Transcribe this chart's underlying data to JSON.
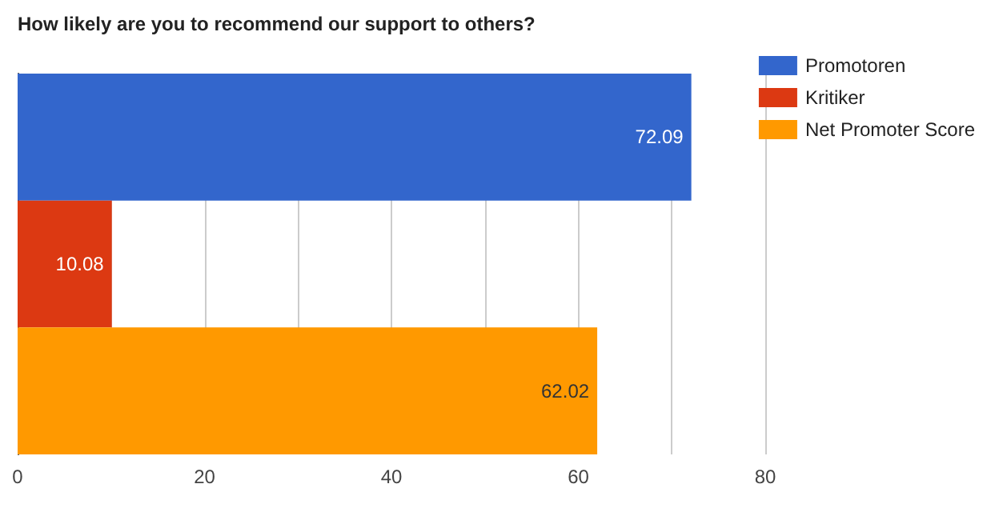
{
  "chart_data": {
    "type": "bar",
    "orientation": "horizontal",
    "title": "How likely are you to recommend our support to others?",
    "categories": [
      null
    ],
    "series": [
      {
        "name": "Promotoren",
        "color": "#3366cc",
        "values": [
          72.09
        ]
      },
      {
        "name": "Kritiker",
        "color": "#dc3912",
        "values": [
          10.08
        ]
      },
      {
        "name": "Net Promoter Score",
        "color": "#ff9900",
        "values": [
          62.02
        ]
      }
    ],
    "xlim": [
      0,
      80
    ],
    "xticks": [
      0,
      {
        "value": 10,
        "label": null
      },
      20,
      {
        "value": 30,
        "label": null
      },
      40,
      {
        "value": 50,
        "label": null
      },
      60,
      {
        "value": 70,
        "label": null
      },
      80
    ],
    "grid": "x",
    "legend": "right",
    "data_labels": true
  }
}
